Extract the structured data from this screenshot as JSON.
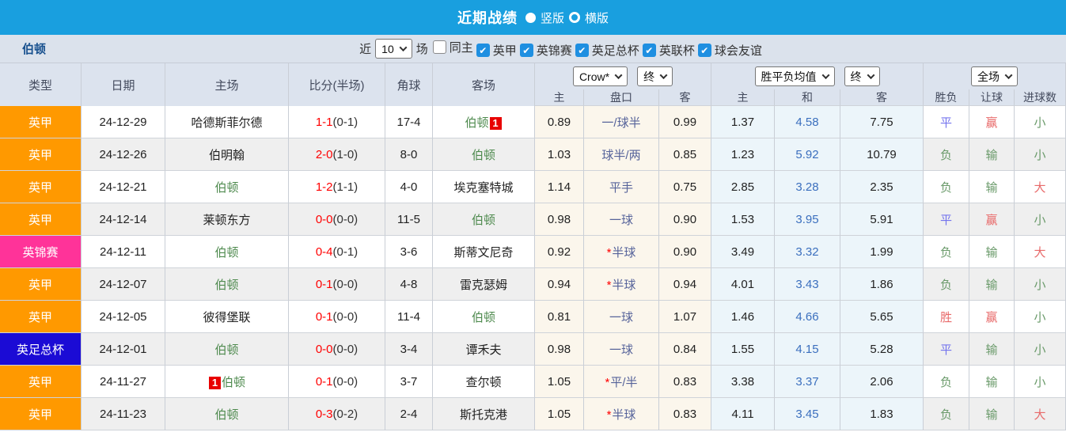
{
  "colors": {
    "topbar_blue": "#199fdf",
    "filterbar_bg": "#dbe2ec",
    "header_bg": "#dce3ee",
    "league_one_orange": "#ff9900",
    "efl_trophy_pink": "#ff3399",
    "fa_cup_blue": "#1b0bd5",
    "score_red": "#ff0000",
    "team_green": "#4e8a4e",
    "handicap_text": "#56639a",
    "avg_draw_blue": "#3b6fbe",
    "result_red": "#e86a6a",
    "result_green": "#6a9a6a",
    "result_blue": "#7474ee",
    "odds_col_bg": "#fbf6ec",
    "avg_col_bg": "#ecf5fa",
    "checkbox_blue": "#1e8fe1"
  },
  "title_bar": {
    "title": "近期战绩",
    "radio_vertical": "竖版",
    "radio_horizontal": "横版"
  },
  "filter_bar": {
    "team": "伯顿",
    "recent_label": "近",
    "recent_value": "10",
    "matches_label": "场",
    "toggles": [
      {
        "label": "同主",
        "checked": false
      },
      {
        "label": "英甲",
        "checked": true
      },
      {
        "label": "英锦赛",
        "checked": true
      },
      {
        "label": "英足总杯",
        "checked": true
      },
      {
        "label": "英联杯",
        "checked": true
      },
      {
        "label": "球会友谊",
        "checked": true
      }
    ]
  },
  "table": {
    "headers": {
      "type": "类型",
      "date": "日期",
      "home": "主场",
      "score": "比分(半场)",
      "corner": "角球",
      "away": "客场",
      "odds_company_select": "Crow*",
      "final_select_1": "终",
      "avg_select": "胜平负均值",
      "final_select_2": "终",
      "full_match_select": "全场",
      "sub": [
        "主",
        "盘口",
        "客",
        "主",
        "和",
        "客",
        "胜负",
        "让球",
        "进球数"
      ]
    },
    "rows": [
      {
        "type": "英甲",
        "type_color": "orange",
        "date": "24-12-29",
        "home": {
          "name": "哈德斯菲尔德",
          "green": false
        },
        "away": {
          "name": "伯顿",
          "green": true,
          "badge": "1",
          "badge_pos": "after"
        },
        "score_ft": "1-1",
        "score_ht": "(0-1)",
        "corner": "17-4",
        "odds": {
          "home": "0.89",
          "handicap": "一/球半",
          "star": false,
          "away": "0.99"
        },
        "avg": {
          "home": "1.37",
          "draw": "4.58",
          "away": "7.75"
        },
        "results": {
          "wdl": {
            "text": "平",
            "color": "blue"
          },
          "handicap": {
            "text": "赢",
            "color": "red"
          },
          "goals": {
            "text": "小",
            "color": "green"
          }
        }
      },
      {
        "type": "英甲",
        "type_color": "orange",
        "date": "24-12-26",
        "home": {
          "name": "伯明翰",
          "green": false
        },
        "away": {
          "name": "伯顿",
          "green": true
        },
        "score_ft": "2-0",
        "score_ht": "(1-0)",
        "corner": "8-0",
        "odds": {
          "home": "1.03",
          "handicap": "球半/两",
          "star": false,
          "away": "0.85"
        },
        "avg": {
          "home": "1.23",
          "draw": "5.92",
          "away": "10.79"
        },
        "results": {
          "wdl": {
            "text": "负",
            "color": "green"
          },
          "handicap": {
            "text": "输",
            "color": "green"
          },
          "goals": {
            "text": "小",
            "color": "green"
          }
        }
      },
      {
        "type": "英甲",
        "type_color": "orange",
        "date": "24-12-21",
        "home": {
          "name": "伯顿",
          "green": true
        },
        "away": {
          "name": "埃克塞特城",
          "green": false
        },
        "score_ft": "1-2",
        "score_ht": "(1-1)",
        "corner": "4-0",
        "odds": {
          "home": "1.14",
          "handicap": "平手",
          "star": false,
          "away": "0.75"
        },
        "avg": {
          "home": "2.85",
          "draw": "3.28",
          "away": "2.35"
        },
        "results": {
          "wdl": {
            "text": "负",
            "color": "green"
          },
          "handicap": {
            "text": "输",
            "color": "green"
          },
          "goals": {
            "text": "大",
            "color": "red"
          }
        }
      },
      {
        "type": "英甲",
        "type_color": "orange",
        "date": "24-12-14",
        "home": {
          "name": "莱顿东方",
          "green": false
        },
        "away": {
          "name": "伯顿",
          "green": true
        },
        "score_ft": "0-0",
        "score_ht": "(0-0)",
        "corner": "11-5",
        "odds": {
          "home": "0.98",
          "handicap": "一球",
          "star": false,
          "away": "0.90"
        },
        "avg": {
          "home": "1.53",
          "draw": "3.95",
          "away": "5.91"
        },
        "results": {
          "wdl": {
            "text": "平",
            "color": "blue"
          },
          "handicap": {
            "text": "赢",
            "color": "red"
          },
          "goals": {
            "text": "小",
            "color": "green"
          }
        }
      },
      {
        "type": "英锦赛",
        "type_color": "pink",
        "date": "24-12-11",
        "home": {
          "name": "伯顿",
          "green": true
        },
        "away": {
          "name": "斯蒂文尼奇",
          "green": false
        },
        "score_ft": "0-4",
        "score_ht": "(0-1)",
        "corner": "3-6",
        "odds": {
          "home": "0.92",
          "handicap": "半球",
          "star": true,
          "away": "0.90"
        },
        "avg": {
          "home": "3.49",
          "draw": "3.32",
          "away": "1.99"
        },
        "results": {
          "wdl": {
            "text": "负",
            "color": "green"
          },
          "handicap": {
            "text": "输",
            "color": "green"
          },
          "goals": {
            "text": "大",
            "color": "red"
          }
        }
      },
      {
        "type": "英甲",
        "type_color": "orange",
        "date": "24-12-07",
        "home": {
          "name": "伯顿",
          "green": true
        },
        "away": {
          "name": "雷克瑟姆",
          "green": false
        },
        "score_ft": "0-1",
        "score_ht": "(0-0)",
        "corner": "4-8",
        "odds": {
          "home": "0.94",
          "handicap": "半球",
          "star": true,
          "away": "0.94"
        },
        "avg": {
          "home": "4.01",
          "draw": "3.43",
          "away": "1.86"
        },
        "results": {
          "wdl": {
            "text": "负",
            "color": "green"
          },
          "handicap": {
            "text": "输",
            "color": "green"
          },
          "goals": {
            "text": "小",
            "color": "green"
          }
        }
      },
      {
        "type": "英甲",
        "type_color": "orange",
        "date": "24-12-05",
        "home": {
          "name": "彼得堡联",
          "green": false
        },
        "away": {
          "name": "伯顿",
          "green": true
        },
        "score_ft": "0-1",
        "score_ht": "(0-0)",
        "corner": "11-4",
        "odds": {
          "home": "0.81",
          "handicap": "一球",
          "star": false,
          "away": "1.07"
        },
        "avg": {
          "home": "1.46",
          "draw": "4.66",
          "away": "5.65"
        },
        "results": {
          "wdl": {
            "text": "胜",
            "color": "red"
          },
          "handicap": {
            "text": "赢",
            "color": "red"
          },
          "goals": {
            "text": "小",
            "color": "green"
          }
        }
      },
      {
        "type": "英足总杯",
        "type_color": "blue",
        "date": "24-12-01",
        "home": {
          "name": "伯顿",
          "green": true
        },
        "away": {
          "name": "谭禾夫",
          "green": false
        },
        "score_ft": "0-0",
        "score_ht": "(0-0)",
        "corner": "3-4",
        "odds": {
          "home": "0.98",
          "handicap": "一球",
          "star": false,
          "away": "0.84"
        },
        "avg": {
          "home": "1.55",
          "draw": "4.15",
          "away": "5.28"
        },
        "results": {
          "wdl": {
            "text": "平",
            "color": "blue"
          },
          "handicap": {
            "text": "输",
            "color": "green"
          },
          "goals": {
            "text": "小",
            "color": "green"
          }
        }
      },
      {
        "type": "英甲",
        "type_color": "orange",
        "date": "24-11-27",
        "home": {
          "name": "伯顿",
          "green": true,
          "badge": "1",
          "badge_pos": "before"
        },
        "away": {
          "name": "查尔顿",
          "green": false
        },
        "score_ft": "0-1",
        "score_ht": "(0-0)",
        "corner": "3-7",
        "odds": {
          "home": "1.05",
          "handicap": "平/半",
          "star": true,
          "away": "0.83"
        },
        "avg": {
          "home": "3.38",
          "draw": "3.37",
          "away": "2.06"
        },
        "results": {
          "wdl": {
            "text": "负",
            "color": "green"
          },
          "handicap": {
            "text": "输",
            "color": "green"
          },
          "goals": {
            "text": "小",
            "color": "green"
          }
        }
      },
      {
        "type": "英甲",
        "type_color": "orange",
        "date": "24-11-23",
        "home": {
          "name": "伯顿",
          "green": true
        },
        "away": {
          "name": "斯托克港",
          "green": false
        },
        "score_ft": "0-3",
        "score_ht": "(0-2)",
        "corner": "2-4",
        "odds": {
          "home": "1.05",
          "handicap": "半球",
          "star": true,
          "away": "0.83"
        },
        "avg": {
          "home": "4.11",
          "draw": "3.45",
          "away": "1.83"
        },
        "results": {
          "wdl": {
            "text": "负",
            "color": "green"
          },
          "handicap": {
            "text": "输",
            "color": "green"
          },
          "goals": {
            "text": "大",
            "color": "red"
          }
        }
      }
    ]
  }
}
